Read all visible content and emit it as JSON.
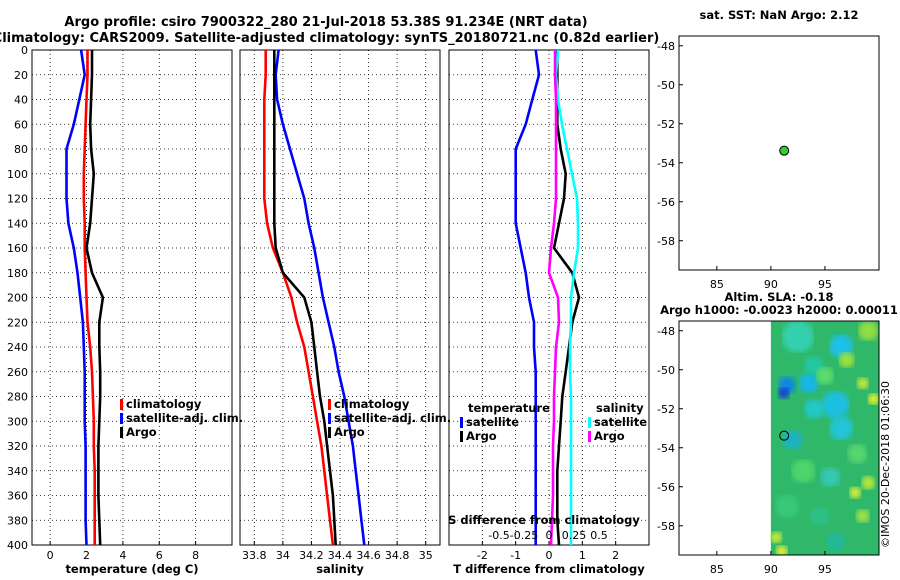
{
  "title": {
    "line1": "Argo profile: csiro 7900322_280 21-Jul-2018 53.38S 91.234E (NRT data)",
    "line2": "Climatology: CARS2009. Satellite-adjusted climatology: synTS_20180721.nc (0.82d earlier)"
  },
  "colors": {
    "climatology": "#ff0000",
    "satellite": "#0000ff",
    "argo": "#000000",
    "sal_sat": "#00ffff",
    "sal_argo": "#ff00ff",
    "dot": "#33cc33"
  },
  "chart_data": [
    {
      "id": "temperature",
      "type": "line",
      "xlabel": "temperature (deg C)",
      "xlim": [
        -1,
        10
      ],
      "ylim": [
        400,
        0
      ],
      "xticks": [
        "0",
        "2",
        "4",
        "6",
        "8"
      ],
      "yticks": [
        "0",
        "20",
        "40",
        "60",
        "80",
        "100",
        "120",
        "140",
        "160",
        "180",
        "200",
        "220",
        "240",
        "260",
        "280",
        "300",
        "320",
        "340",
        "360",
        "380",
        "400"
      ],
      "legend": [
        "climatology",
        "satellite-adj. clim.",
        "Argo"
      ],
      "series": [
        {
          "name": "climatology",
          "color": "#ff0000",
          "x": [
            2.05,
            2.05,
            2.0,
            1.95,
            1.9,
            1.85,
            1.85,
            1.9,
            1.9,
            1.95,
            2.0,
            2.05,
            2.2,
            2.3,
            2.35,
            2.4,
            2.4,
            2.45,
            2.45,
            2.45,
            2.45
          ],
          "y": [
            0,
            20,
            40,
            60,
            80,
            100,
            120,
            140,
            160,
            180,
            200,
            220,
            240,
            260,
            280,
            300,
            320,
            340,
            360,
            380,
            400
          ]
        },
        {
          "name": "satellite-adj. clim.",
          "color": "#0000ff",
          "x": [
            1.7,
            1.9,
            1.6,
            1.3,
            0.9,
            0.9,
            0.9,
            1.0,
            1.3,
            1.5,
            1.65,
            1.8,
            1.85,
            1.9,
            1.9,
            1.9,
            1.95,
            1.95,
            1.95,
            1.95,
            2.0
          ],
          "y": [
            0,
            20,
            40,
            60,
            80,
            100,
            120,
            140,
            160,
            180,
            200,
            220,
            240,
            260,
            280,
            300,
            320,
            340,
            360,
            380,
            400
          ]
        },
        {
          "name": "Argo",
          "color": "#000000",
          "x": [
            2.3,
            2.3,
            2.25,
            2.2,
            2.25,
            2.4,
            2.3,
            2.2,
            2.0,
            2.3,
            2.9,
            2.7,
            2.7,
            2.75,
            2.75,
            2.7,
            2.65,
            2.65,
            2.65,
            2.7,
            2.75
          ],
          "y": [
            0,
            20,
            40,
            60,
            80,
            100,
            120,
            140,
            160,
            180,
            200,
            220,
            240,
            260,
            280,
            300,
            320,
            340,
            360,
            380,
            400
          ]
        }
      ]
    },
    {
      "id": "salinity",
      "type": "line",
      "xlabel": "salinity",
      "xlim": [
        33.7,
        35.1
      ],
      "ylim": [
        400,
        0
      ],
      "xticks": [
        "33.8",
        "34",
        "34.2",
        "34.4",
        "34.6",
        "34.8",
        "35"
      ],
      "legend": [
        "climatology",
        "satellite-adj. clim.",
        "Argo"
      ],
      "series": [
        {
          "name": "climatology",
          "color": "#ff0000",
          "x": [
            33.88,
            33.88,
            33.87,
            33.87,
            33.87,
            33.87,
            33.87,
            33.89,
            33.93,
            34.0,
            34.06,
            34.1,
            34.15,
            34.18,
            34.21,
            34.24,
            34.27,
            34.29,
            34.31,
            34.33,
            34.35
          ],
          "y": [
            0,
            20,
            40,
            60,
            80,
            100,
            120,
            140,
            160,
            180,
            200,
            220,
            240,
            260,
            280,
            300,
            320,
            340,
            360,
            380,
            400
          ]
        },
        {
          "name": "satellite-adj. clim.",
          "color": "#0000ff",
          "x": [
            33.97,
            33.95,
            33.96,
            34.0,
            34.05,
            34.1,
            34.15,
            34.18,
            34.22,
            34.25,
            34.28,
            34.32,
            34.36,
            34.39,
            34.43,
            34.46,
            34.49,
            34.51,
            34.53,
            34.55,
            34.57
          ],
          "y": [
            0,
            20,
            40,
            60,
            80,
            100,
            120,
            140,
            160,
            180,
            200,
            220,
            240,
            260,
            280,
            300,
            320,
            340,
            360,
            380,
            400
          ]
        },
        {
          "name": "Argo",
          "color": "#000000",
          "x": [
            33.94,
            33.94,
            33.94,
            33.94,
            33.94,
            33.94,
            33.94,
            33.94,
            33.95,
            34.0,
            34.15,
            34.2,
            34.22,
            34.24,
            34.26,
            34.29,
            34.31,
            34.33,
            34.35,
            34.36,
            34.37
          ],
          "y": [
            0,
            20,
            40,
            60,
            80,
            100,
            120,
            140,
            160,
            180,
            200,
            220,
            240,
            260,
            280,
            300,
            320,
            340,
            360,
            380,
            400
          ]
        }
      ]
    },
    {
      "id": "difference",
      "type": "line",
      "xlabel": "T difference from climatology",
      "top_label": "S difference from climatology",
      "xlim": [
        -3,
        3
      ],
      "ylim": [
        400,
        0
      ],
      "xticks": [
        "-2",
        "-1",
        "0",
        "1",
        "2"
      ],
      "sticks": [
        "-0.5",
        "-0.25",
        "0",
        "0.25",
        "0.5"
      ],
      "legend_temperature_title": "temperature",
      "legend_salinity_title": "salinity",
      "legend_temperature": [
        "satellite",
        "Argo"
      ],
      "legend_salinity": [
        "satellite",
        "Argo"
      ],
      "series": [
        {
          "name": "T satellite",
          "color": "#0000ff",
          "x": [
            -0.4,
            -0.3,
            -0.5,
            -0.7,
            -1.0,
            -1.0,
            -1.0,
            -1.0,
            -0.85,
            -0.7,
            -0.6,
            -0.45,
            -0.45,
            -0.4,
            -0.4,
            -0.4,
            -0.4,
            -0.4,
            -0.4,
            -0.4,
            -0.4
          ],
          "y": [
            0,
            20,
            40,
            60,
            80,
            100,
            120,
            140,
            160,
            180,
            200,
            220,
            240,
            260,
            280,
            300,
            320,
            340,
            360,
            380,
            400
          ]
        },
        {
          "name": "T Argo",
          "color": "#000000",
          "x": [
            0.25,
            0.25,
            0.25,
            0.25,
            0.35,
            0.5,
            0.45,
            0.3,
            0.15,
            0.7,
            0.9,
            0.7,
            0.6,
            0.5,
            0.4,
            0.35,
            0.3,
            0.25,
            0.25,
            0.25,
            0.3
          ],
          "y": [
            0,
            20,
            40,
            60,
            80,
            100,
            120,
            140,
            160,
            180,
            200,
            220,
            240,
            260,
            280,
            300,
            320,
            340,
            360,
            380,
            400
          ]
        },
        {
          "name": "S satellite",
          "color": "#00ffff",
          "x": [
            0.09,
            0.07,
            0.09,
            0.13,
            0.18,
            0.23,
            0.28,
            0.29,
            0.29,
            0.25,
            0.22,
            0.22,
            0.21,
            0.21,
            0.22,
            0.22,
            0.22,
            0.22,
            0.22,
            0.22,
            0.22
          ],
          "y": [
            0,
            20,
            40,
            60,
            80,
            100,
            120,
            140,
            160,
            180,
            200,
            220,
            240,
            260,
            280,
            300,
            320,
            340,
            360,
            380,
            400
          ]
        },
        {
          "name": "S Argo",
          "color": "#ff00ff",
          "x": [
            0.06,
            0.06,
            0.07,
            0.07,
            0.07,
            0.07,
            0.07,
            0.05,
            0.02,
            0.0,
            0.09,
            0.1,
            0.07,
            0.06,
            0.05,
            0.05,
            0.04,
            0.04,
            0.04,
            0.03,
            0.02
          ],
          "y": [
            0,
            20,
            40,
            60,
            80,
            100,
            120,
            140,
            160,
            180,
            200,
            220,
            240,
            260,
            280,
            300,
            320,
            340,
            360,
            380,
            400
          ]
        }
      ]
    },
    {
      "id": "sst_map",
      "type": "scatter",
      "title": "sat. SST: NaN Argo: 2.12",
      "xlim": [
        81.5,
        100
      ],
      "ylim": [
        -59.5,
        -47.5
      ],
      "xticks": [
        "85",
        "90",
        "95"
      ],
      "yticks": [
        "-48",
        "-50",
        "-52",
        "-54",
        "-56",
        "-58"
      ],
      "points": [
        {
          "x": 91.23,
          "y": -53.38
        }
      ]
    },
    {
      "id": "sla_map",
      "type": "heatmap",
      "title1": "Altim. SLA: -0.18",
      "title2": "Argo h1000: -0.0023 h2000: 0.00011",
      "xlim": [
        81.5,
        100
      ],
      "ylim": [
        -59.5,
        -47.5
      ],
      "field_x_range": [
        90,
        100
      ],
      "xticks": [
        "85",
        "90",
        "95"
      ],
      "yticks": [
        "-48",
        "-50",
        "-52",
        "-54",
        "-56",
        "-58"
      ],
      "points": [
        {
          "x": 91.23,
          "y": -53.38
        }
      ],
      "side_label": "©IMOS 20-Dec-2018 01:06:30"
    }
  ]
}
